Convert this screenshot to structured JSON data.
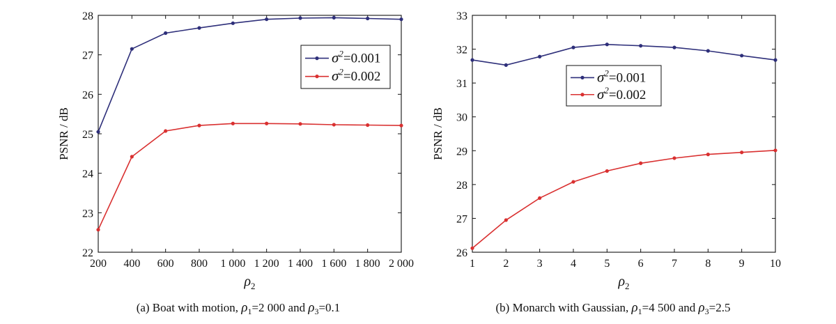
{
  "chart_data": [
    {
      "type": "line",
      "title": "",
      "caption": {
        "prefix": "(a) Boat with motion,",
        "p1_sym": "ρ",
        "p1_sub": "1",
        "p1_val": "=2 000 and",
        "p3_sym": "ρ",
        "p3_sub": "3",
        "p3_val": "=0.1"
      },
      "xlabel": {
        "sym": "ρ",
        "sub": "2"
      },
      "ylabel": "PSNR / dB",
      "xlim": [
        200,
        2000
      ],
      "ylim": [
        22,
        28
      ],
      "xticks": [
        200,
        400,
        600,
        800,
        1000,
        1200,
        1400,
        1600,
        1800,
        2000
      ],
      "xtick_labels": [
        "200",
        "400",
        "600",
        "800",
        "1 000",
        "1 200",
        "1 400",
        "1 600",
        "1 800",
        "2 000"
      ],
      "yticks": [
        22,
        23,
        24,
        25,
        26,
        27,
        28
      ],
      "ytick_labels": [
        "22",
        "23",
        "24",
        "25",
        "26",
        "27",
        "28"
      ],
      "grid": false,
      "legend_position": "top-right",
      "x": [
        200,
        400,
        600,
        800,
        1000,
        1200,
        1400,
        1600,
        1800,
        2000
      ],
      "series": [
        {
          "name": "σ2=0.001",
          "legend": {
            "sym": "σ",
            "sup": "2",
            "val": "=0.001"
          },
          "color": "#2e2f7a",
          "values": [
            25.05,
            27.15,
            27.55,
            27.68,
            27.8,
            27.9,
            27.93,
            27.94,
            27.92,
            27.9
          ]
        },
        {
          "name": "σ2=0.002",
          "legend": {
            "sym": "σ",
            "sup": "2",
            "val": "=0.002"
          },
          "color": "#d93030",
          "values": [
            22.57,
            24.42,
            25.07,
            25.21,
            25.26,
            25.26,
            25.25,
            25.23,
            25.22,
            25.21
          ]
        }
      ]
    },
    {
      "type": "line",
      "title": "",
      "caption": {
        "prefix": "(b) Monarch with Gaussian,",
        "p1_sym": "ρ",
        "p1_sub": "1",
        "p1_val": "=4 500 and",
        "p3_sym": "ρ",
        "p3_sub": "3",
        "p3_val": "=2.5"
      },
      "xlabel": {
        "sym": "ρ",
        "sub": "2"
      },
      "ylabel": "PSNR / dB",
      "xlim": [
        1,
        10
      ],
      "ylim": [
        26,
        33
      ],
      "xticks": [
        1,
        2,
        3,
        4,
        5,
        6,
        7,
        8,
        9,
        10
      ],
      "xtick_labels": [
        "1",
        "2",
        "3",
        "4",
        "5",
        "6",
        "7",
        "8",
        "9",
        "10"
      ],
      "yticks": [
        26,
        27,
        28,
        29,
        30,
        31,
        32,
        33
      ],
      "ytick_labels": [
        "26",
        "27",
        "28",
        "29",
        "30",
        "31",
        "32",
        "33"
      ],
      "grid": false,
      "legend_position": "top-left",
      "x": [
        1,
        2,
        3,
        4,
        5,
        6,
        7,
        8,
        9,
        10
      ],
      "series": [
        {
          "name": "σ2=0.001",
          "legend": {
            "sym": "σ",
            "sup": "2",
            "val": "=0.001"
          },
          "color": "#2e2f7a",
          "values": [
            31.68,
            31.53,
            31.78,
            32.05,
            32.14,
            32.1,
            32.05,
            31.95,
            31.81,
            31.68
          ]
        },
        {
          "name": "σ2=0.002",
          "legend": {
            "sym": "σ",
            "sup": "2",
            "val": "=0.002"
          },
          "color": "#d93030",
          "values": [
            26.12,
            26.95,
            27.6,
            28.08,
            28.4,
            28.63,
            28.78,
            28.89,
            28.95,
            29.01
          ]
        }
      ]
    }
  ]
}
